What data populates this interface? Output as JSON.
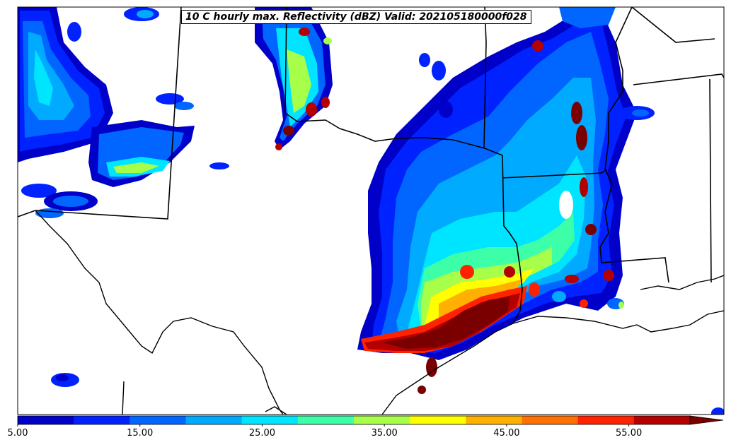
{
  "title": "10 C hourly max. Reflectivity (dBZ) Valid: 202105180000f028",
  "colorbar": {
    "min": 5,
    "max": 60,
    "step": 5,
    "extend": "max",
    "tick_labels": [
      "5.00",
      "15.00",
      "25.00",
      "35.00",
      "45.00",
      "55.00"
    ],
    "colors": [
      "#0000c8",
      "#0022ff",
      "#0066ff",
      "#00aaff",
      "#00e5ff",
      "#3dffa8",
      "#a8ff4a",
      "#ffff00",
      "#ffb000",
      "#ff7000",
      "#ff2200",
      "#b40000"
    ],
    "over_color": "#7a0000"
  }
}
